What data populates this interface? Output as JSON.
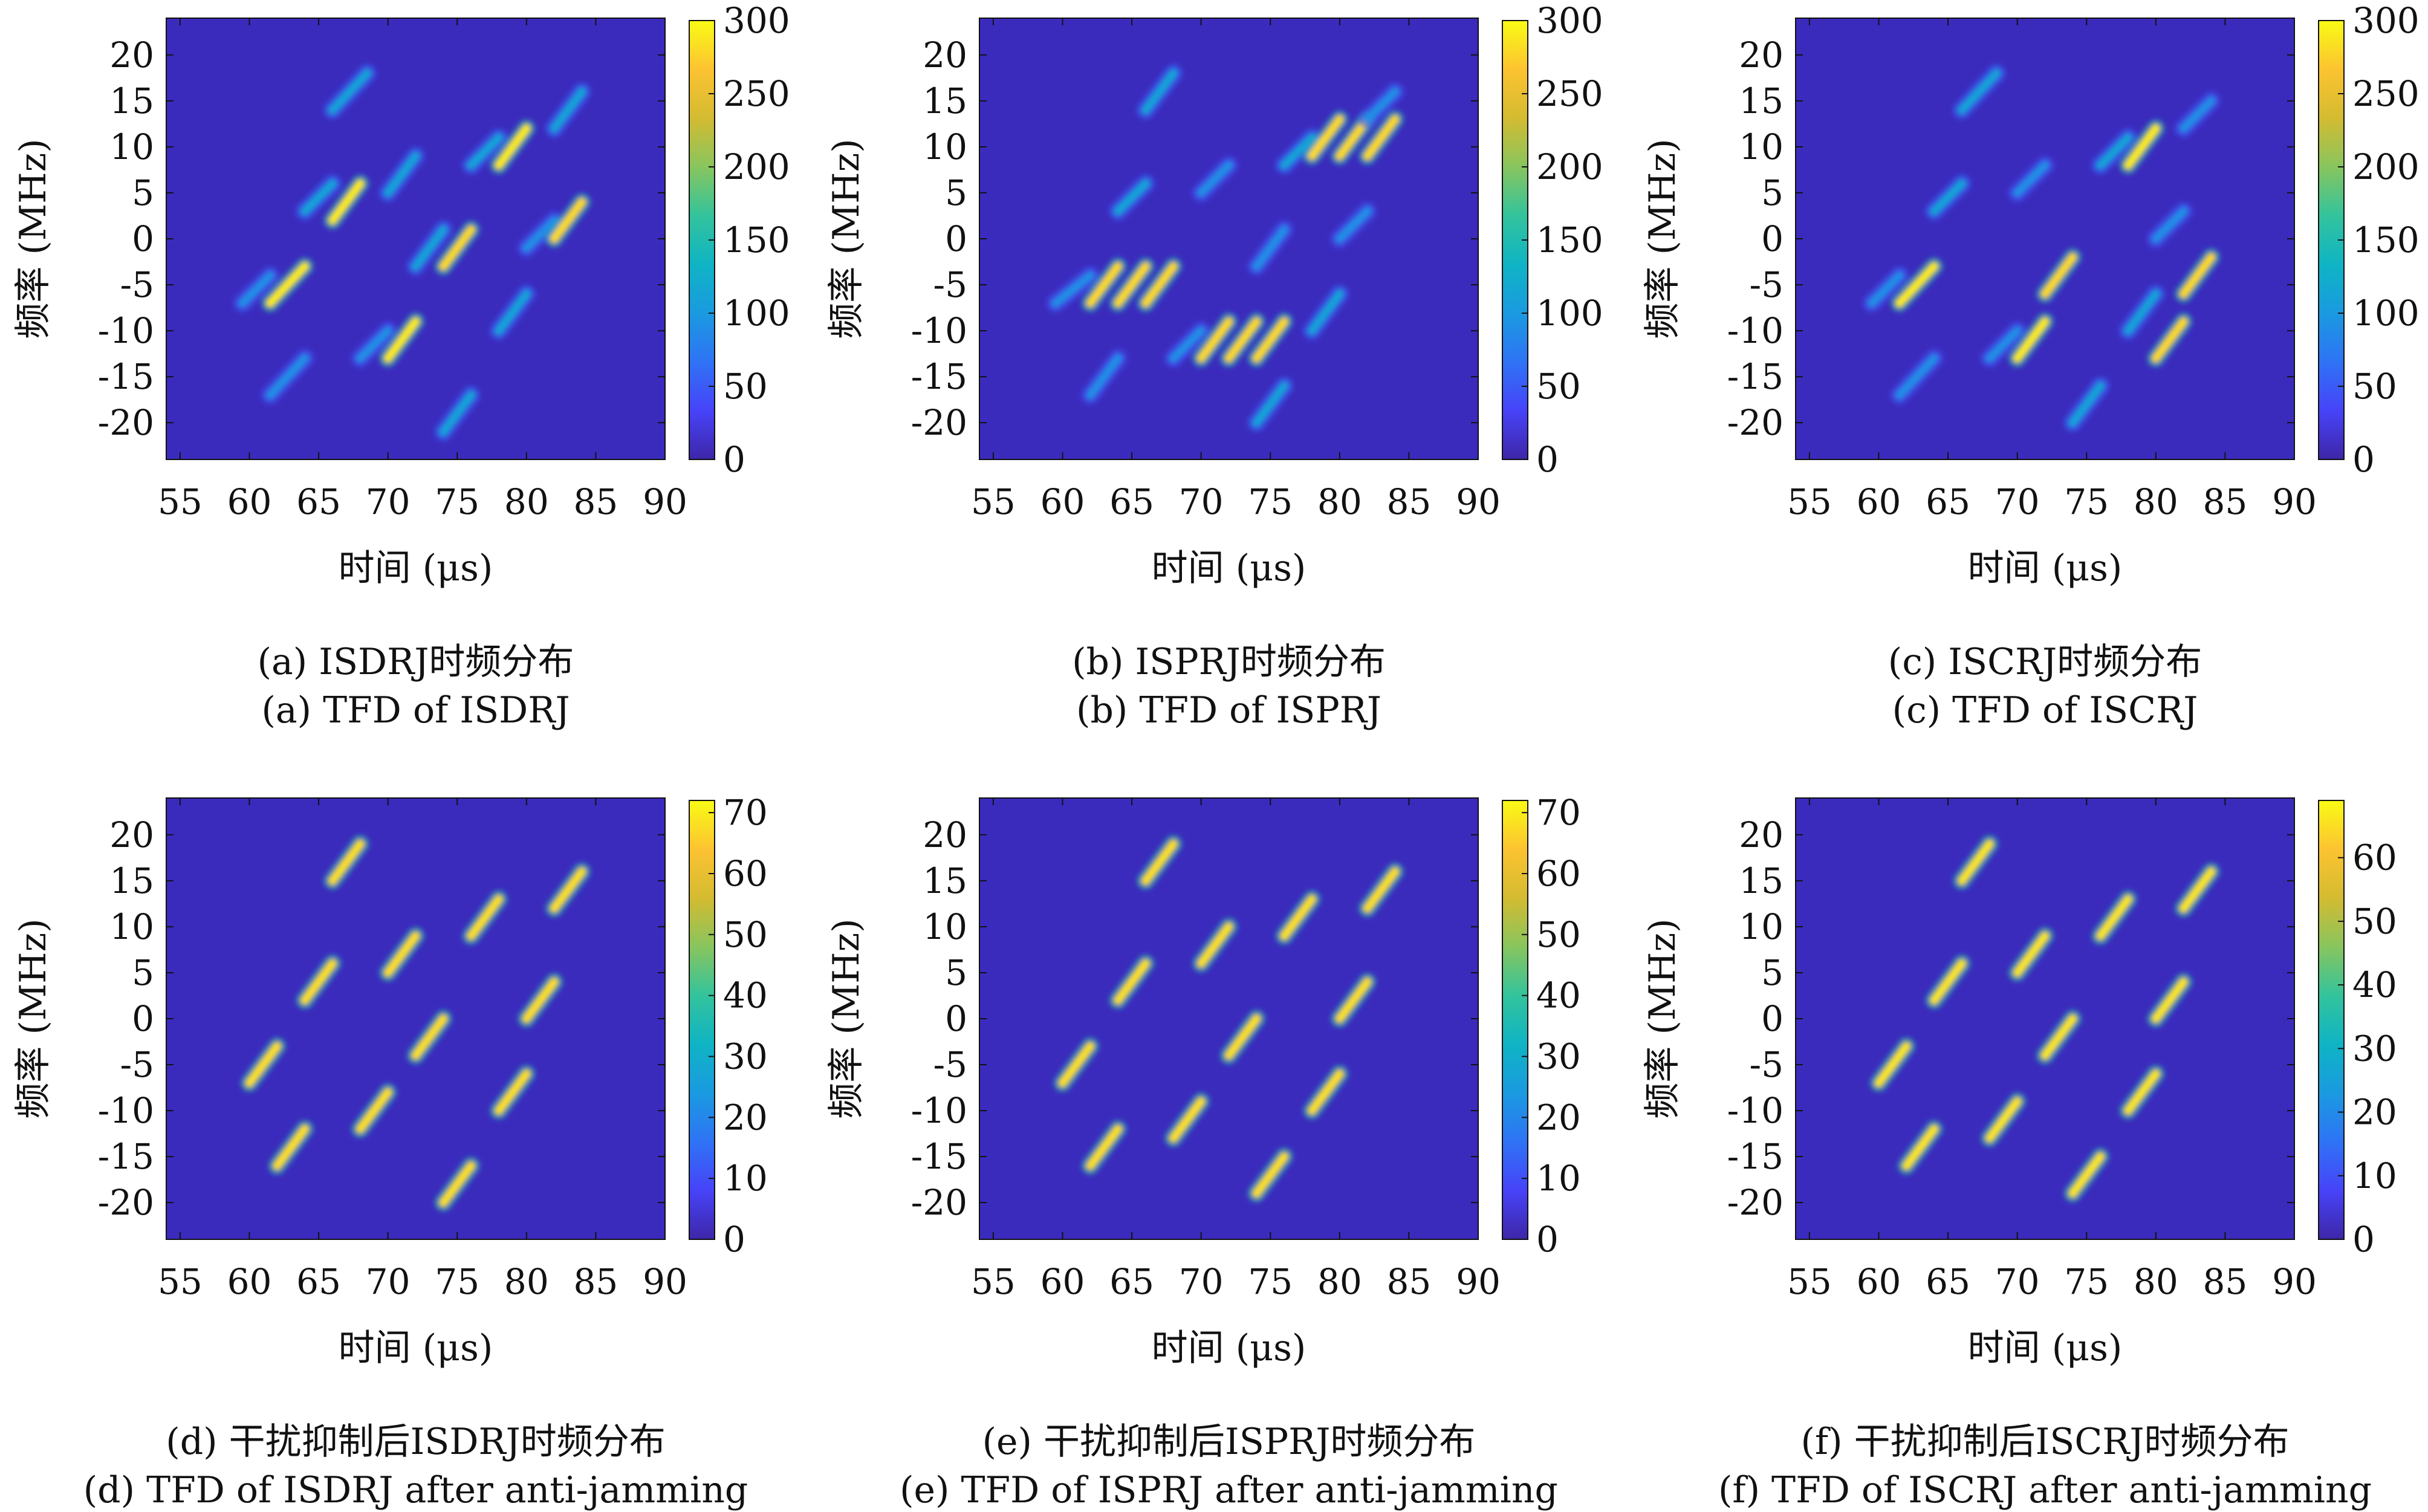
{
  "colors": {
    "background": "#3b2bbd",
    "colormap": [
      "#3e26a8",
      "#4743f8",
      "#2f73f5",
      "#1a9ae0",
      "#0fb4c4",
      "#33c39c",
      "#88c55e",
      "#d4bb31",
      "#fcc331",
      "#f9fb15"
    ]
  },
  "chart_data": [
    {
      "type": "heatmap",
      "panel": "a",
      "xlabel": "时间 (μs)",
      "ylabel": "频率 (MHz)",
      "xlim": [
        54,
        90
      ],
      "ylim": [
        -24,
        24
      ],
      "xticks": [
        55,
        60,
        65,
        70,
        75,
        80,
        85,
        90
      ],
      "yticks": [
        -20,
        -15,
        -10,
        -5,
        0,
        5,
        10,
        15,
        20
      ],
      "colorbar": {
        "min": 0,
        "max": 300,
        "ticks": [
          0,
          50,
          100,
          150,
          200,
          250,
          300
        ]
      },
      "caption_cn": "(a) ISDRJ时频分布",
      "caption_en": "(a) TFD of ISDRJ",
      "segments": [
        {
          "t0": 59.5,
          "t1": 61.5,
          "f0": -7,
          "f1": -4,
          "value": 90
        },
        {
          "t0": 61.5,
          "t1": 64,
          "f0": -7,
          "f1": -3,
          "value": 290
        },
        {
          "t0": 61.5,
          "t1": 64,
          "f0": -17,
          "f1": -13,
          "value": 90
        },
        {
          "t0": 64,
          "t1": 66,
          "f0": 3,
          "f1": 6,
          "value": 110
        },
        {
          "t0": 66,
          "t1": 68,
          "f0": 2,
          "f1": 6,
          "value": 290
        },
        {
          "t0": 66,
          "t1": 68.5,
          "f0": 14,
          "f1": 18,
          "value": 110
        },
        {
          "t0": 68,
          "t1": 70,
          "f0": -13,
          "f1": -10,
          "value": 90
        },
        {
          "t0": 70,
          "t1": 72,
          "f0": -13,
          "f1": -9,
          "value": 290
        },
        {
          "t0": 70,
          "t1": 72,
          "f0": 5,
          "f1": 9,
          "value": 110
        },
        {
          "t0": 72,
          "t1": 74,
          "f0": -3,
          "f1": 1,
          "value": 110
        },
        {
          "t0": 74,
          "t1": 76,
          "f0": -3,
          "f1": 1,
          "value": 280
        },
        {
          "t0": 74,
          "t1": 76,
          "f0": -21,
          "f1": -17,
          "value": 110
        },
        {
          "t0": 76,
          "t1": 78,
          "f0": 8,
          "f1": 11,
          "value": 110
        },
        {
          "t0": 78,
          "t1": 80,
          "f0": 8,
          "f1": 12,
          "value": 290
        },
        {
          "t0": 78,
          "t1": 80,
          "f0": -10,
          "f1": -6,
          "value": 110
        },
        {
          "t0": 80,
          "t1": 82,
          "f0": -1,
          "f1": 2,
          "value": 90
        },
        {
          "t0": 82,
          "t1": 84,
          "f0": 0,
          "f1": 4,
          "value": 280
        },
        {
          "t0": 82,
          "t1": 84,
          "f0": 12,
          "f1": 16,
          "value": 110
        }
      ]
    },
    {
      "type": "heatmap",
      "panel": "b",
      "xlabel": "时间 (μs)",
      "ylabel": "频率 (MHz)",
      "xlim": [
        54,
        90
      ],
      "ylim": [
        -24,
        24
      ],
      "xticks": [
        55,
        60,
        65,
        70,
        75,
        80,
        85,
        90
      ],
      "yticks": [
        -20,
        -15,
        -10,
        -5,
        0,
        5,
        10,
        15,
        20
      ],
      "colorbar": {
        "min": 0,
        "max": 300,
        "ticks": [
          0,
          50,
          100,
          150,
          200,
          250,
          300
        ]
      },
      "caption_cn": "(b) ISPRJ时频分布",
      "caption_en": "(b) TFD of ISPRJ",
      "segments": [
        {
          "t0": 59.5,
          "t1": 62,
          "f0": -7,
          "f1": -4,
          "value": 90
        },
        {
          "t0": 62,
          "t1": 64,
          "f0": -7,
          "f1": -3,
          "value": 280
        },
        {
          "t0": 64,
          "t1": 66,
          "f0": -7,
          "f1": -3,
          "value": 280
        },
        {
          "t0": 66,
          "t1": 68,
          "f0": -7,
          "f1": -3,
          "value": 280
        },
        {
          "t0": 62,
          "t1": 64,
          "f0": -17,
          "f1": -13,
          "value": 90
        },
        {
          "t0": 64,
          "t1": 66,
          "f0": 3,
          "f1": 6,
          "value": 110
        },
        {
          "t0": 66,
          "t1": 68,
          "f0": 14,
          "f1": 18,
          "value": 110
        },
        {
          "t0": 68,
          "t1": 70,
          "f0": -13,
          "f1": -10,
          "value": 90
        },
        {
          "t0": 70,
          "t1": 72,
          "f0": -13,
          "f1": -9,
          "value": 280
        },
        {
          "t0": 72,
          "t1": 74,
          "f0": -13,
          "f1": -9,
          "value": 280
        },
        {
          "t0": 74,
          "t1": 76,
          "f0": -13,
          "f1": -9,
          "value": 280
        },
        {
          "t0": 70,
          "t1": 72,
          "f0": 5,
          "f1": 8,
          "value": 90
        },
        {
          "t0": 74,
          "t1": 76,
          "f0": -20,
          "f1": -16,
          "value": 110
        },
        {
          "t0": 74,
          "t1": 76,
          "f0": -3,
          "f1": 1,
          "value": 90
        },
        {
          "t0": 76,
          "t1": 78,
          "f0": 8,
          "f1": 11,
          "value": 110
        },
        {
          "t0": 78,
          "t1": 80,
          "f0": 9,
          "f1": 13,
          "value": 280
        },
        {
          "t0": 80,
          "t1": 82,
          "f0": 9,
          "f1": 13,
          "value": 280
        },
        {
          "t0": 82,
          "t1": 84,
          "f0": 9,
          "f1": 13,
          "value": 280
        },
        {
          "t0": 78,
          "t1": 80,
          "f0": -10,
          "f1": -6,
          "value": 110
        },
        {
          "t0": 80,
          "t1": 82,
          "f0": 0,
          "f1": 3,
          "value": 90
        },
        {
          "t0": 82,
          "t1": 84,
          "f0": 13,
          "f1": 16,
          "value": 90
        }
      ]
    },
    {
      "type": "heatmap",
      "panel": "c",
      "xlabel": "时间 (μs)",
      "ylabel": "频率 (MHz)",
      "xlim": [
        54,
        90
      ],
      "ylim": [
        -24,
        24
      ],
      "xticks": [
        55,
        60,
        65,
        70,
        75,
        80,
        85,
        90
      ],
      "yticks": [
        -20,
        -15,
        -10,
        -5,
        0,
        5,
        10,
        15,
        20
      ],
      "colorbar": {
        "min": 0,
        "max": 300,
        "ticks": [
          0,
          50,
          100,
          150,
          200,
          250,
          300
        ]
      },
      "caption_cn": "(c) ISCRJ时频分布",
      "caption_en": "(c) TFD of ISCRJ",
      "segments": [
        {
          "t0": 59.5,
          "t1": 61.5,
          "f0": -7,
          "f1": -4,
          "value": 90
        },
        {
          "t0": 61.5,
          "t1": 64,
          "f0": -7,
          "f1": -3,
          "value": 290
        },
        {
          "t0": 61.5,
          "t1": 64,
          "f0": -17,
          "f1": -13,
          "value": 90
        },
        {
          "t0": 64,
          "t1": 66,
          "f0": 3,
          "f1": 6,
          "value": 110
        },
        {
          "t0": 66,
          "t1": 68.5,
          "f0": 14,
          "f1": 18,
          "value": 110
        },
        {
          "t0": 68,
          "t1": 70,
          "f0": -13,
          "f1": -10,
          "value": 90
        },
        {
          "t0": 70,
          "t1": 72,
          "f0": -13,
          "f1": -9,
          "value": 290
        },
        {
          "t0": 70,
          "t1": 72,
          "f0": 5,
          "f1": 8,
          "value": 90
        },
        {
          "t0": 72,
          "t1": 74,
          "f0": -6,
          "f1": -2,
          "value": 280
        },
        {
          "t0": 74,
          "t1": 76,
          "f0": -20,
          "f1": -16,
          "value": 110
        },
        {
          "t0": 76,
          "t1": 78,
          "f0": 8,
          "f1": 11,
          "value": 110
        },
        {
          "t0": 78,
          "t1": 80,
          "f0": 8,
          "f1": 12,
          "value": 290
        },
        {
          "t0": 78,
          "t1": 80,
          "f0": -10,
          "f1": -6,
          "value": 110
        },
        {
          "t0": 80,
          "t1": 82,
          "f0": -13,
          "f1": -9,
          "value": 280
        },
        {
          "t0": 80,
          "t1": 82,
          "f0": 0,
          "f1": 3,
          "value": 90
        },
        {
          "t0": 82,
          "t1": 84,
          "f0": -6,
          "f1": -2,
          "value": 280
        },
        {
          "t0": 82,
          "t1": 84,
          "f0": 12,
          "f1": 15,
          "value": 90
        }
      ]
    },
    {
      "type": "heatmap",
      "panel": "d",
      "xlabel": "时间 (μs)",
      "ylabel": "频率 (MHz)",
      "xlim": [
        54,
        90
      ],
      "ylim": [
        -24,
        24
      ],
      "xticks": [
        55,
        60,
        65,
        70,
        75,
        80,
        85,
        90
      ],
      "yticks": [
        -20,
        -15,
        -10,
        -5,
        0,
        5,
        10,
        15,
        20
      ],
      "colorbar": {
        "min": 0,
        "max": 72,
        "ticks": [
          0,
          10,
          20,
          30,
          40,
          50,
          60,
          70
        ]
      },
      "caption_cn": "(d) 干扰抑制后ISDRJ时频分布",
      "caption_en": "(d) TFD of ISDRJ after anti-jamming",
      "segments": [
        {
          "t0": 60,
          "t1": 62,
          "f0": -7,
          "f1": -3,
          "value": 68
        },
        {
          "t0": 62,
          "t1": 64,
          "f0": -16,
          "f1": -12,
          "value": 68
        },
        {
          "t0": 64,
          "t1": 66,
          "f0": 2,
          "f1": 6,
          "value": 68
        },
        {
          "t0": 66,
          "t1": 68,
          "f0": 15,
          "f1": 19,
          "value": 68
        },
        {
          "t0": 68,
          "t1": 70,
          "f0": -12,
          "f1": -8,
          "value": 68
        },
        {
          "t0": 70,
          "t1": 72,
          "f0": 5,
          "f1": 9,
          "value": 68
        },
        {
          "t0": 72,
          "t1": 74,
          "f0": -4,
          "f1": 0,
          "value": 68
        },
        {
          "t0": 74,
          "t1": 76,
          "f0": -20,
          "f1": -16,
          "value": 68
        },
        {
          "t0": 76,
          "t1": 78,
          "f0": 9,
          "f1": 13,
          "value": 68
        },
        {
          "t0": 78,
          "t1": 80,
          "f0": -10,
          "f1": -6,
          "value": 68
        },
        {
          "t0": 80,
          "t1": 82,
          "f0": 0,
          "f1": 4,
          "value": 68
        },
        {
          "t0": 82,
          "t1": 84,
          "f0": 12,
          "f1": 16,
          "value": 68
        }
      ]
    },
    {
      "type": "heatmap",
      "panel": "e",
      "xlabel": "时间 (μs)",
      "ylabel": "频率 (MHz)",
      "xlim": [
        54,
        90
      ],
      "ylim": [
        -24,
        24
      ],
      "xticks": [
        55,
        60,
        65,
        70,
        75,
        80,
        85,
        90
      ],
      "yticks": [
        -20,
        -15,
        -10,
        -5,
        0,
        5,
        10,
        15,
        20
      ],
      "colorbar": {
        "min": 0,
        "max": 72,
        "ticks": [
          0,
          10,
          20,
          30,
          40,
          50,
          60,
          70
        ]
      },
      "caption_cn": "(e) 干扰抑制后ISPRJ时频分布",
      "caption_en": "(e) TFD of ISPRJ after anti-jamming",
      "segments": [
        {
          "t0": 60,
          "t1": 62,
          "f0": -7,
          "f1": -3,
          "value": 68
        },
        {
          "t0": 62,
          "t1": 64,
          "f0": -16,
          "f1": -12,
          "value": 68
        },
        {
          "t0": 64,
          "t1": 66,
          "f0": 2,
          "f1": 6,
          "value": 68
        },
        {
          "t0": 66,
          "t1": 68,
          "f0": 15,
          "f1": 19,
          "value": 68
        },
        {
          "t0": 68,
          "t1": 70,
          "f0": -13,
          "f1": -9,
          "value": 68
        },
        {
          "t0": 70,
          "t1": 72,
          "f0": 6,
          "f1": 10,
          "value": 68
        },
        {
          "t0": 72,
          "t1": 74,
          "f0": -4,
          "f1": 0,
          "value": 68
        },
        {
          "t0": 74,
          "t1": 76,
          "f0": -19,
          "f1": -15,
          "value": 68
        },
        {
          "t0": 76,
          "t1": 78,
          "f0": 9,
          "f1": 13,
          "value": 68
        },
        {
          "t0": 78,
          "t1": 80,
          "f0": -10,
          "f1": -6,
          "value": 68
        },
        {
          "t0": 80,
          "t1": 82,
          "f0": 0,
          "f1": 4,
          "value": 68
        },
        {
          "t0": 82,
          "t1": 84,
          "f0": 12,
          "f1": 16,
          "value": 68
        }
      ]
    },
    {
      "type": "heatmap",
      "panel": "f",
      "xlabel": "时间 (μs)",
      "ylabel": "频率 (MHz)",
      "xlim": [
        54,
        90
      ],
      "ylim": [
        -24,
        24
      ],
      "xticks": [
        55,
        60,
        65,
        70,
        75,
        80,
        85,
        90
      ],
      "yticks": [
        -20,
        -15,
        -10,
        -5,
        0,
        5,
        10,
        15,
        20
      ],
      "colorbar": {
        "min": 0,
        "max": 69,
        "ticks": [
          0,
          10,
          20,
          30,
          40,
          50,
          60
        ]
      },
      "caption_cn": "(f) 干扰抑制后ISCRJ时频分布",
      "caption_en": "(f) TFD of ISCRJ after anti-jamming",
      "segments": [
        {
          "t0": 60,
          "t1": 62,
          "f0": -7,
          "f1": -3,
          "value": 66
        },
        {
          "t0": 62,
          "t1": 64,
          "f0": -16,
          "f1": -12,
          "value": 66
        },
        {
          "t0": 64,
          "t1": 66,
          "f0": 2,
          "f1": 6,
          "value": 66
        },
        {
          "t0": 66,
          "t1": 68,
          "f0": 15,
          "f1": 19,
          "value": 66
        },
        {
          "t0": 68,
          "t1": 70,
          "f0": -13,
          "f1": -9,
          "value": 66
        },
        {
          "t0": 70,
          "t1": 72,
          "f0": 5,
          "f1": 9,
          "value": 66
        },
        {
          "t0": 72,
          "t1": 74,
          "f0": -4,
          "f1": 0,
          "value": 66
        },
        {
          "t0": 74,
          "t1": 76,
          "f0": -19,
          "f1": -15,
          "value": 66
        },
        {
          "t0": 76,
          "t1": 78,
          "f0": 9,
          "f1": 13,
          "value": 66
        },
        {
          "t0": 78,
          "t1": 80,
          "f0": -10,
          "f1": -6,
          "value": 66
        },
        {
          "t0": 80,
          "t1": 82,
          "f0": 0,
          "f1": 4,
          "value": 66
        },
        {
          "t0": 82,
          "t1": 84,
          "f0": 12,
          "f1": 16,
          "value": 66
        }
      ]
    }
  ]
}
